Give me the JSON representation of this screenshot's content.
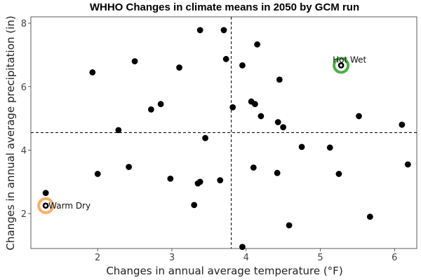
{
  "chart_data": {
    "type": "scatter",
    "title": "WHHO Changes in climate means in 2050 by GCM run",
    "xlabel": "Changes in annual average temperature (°F)",
    "ylabel": "Changes in annual average precipitation (in)",
    "xlim": [
      1.1,
      6.3
    ],
    "ylim": [
      0.9,
      8.2
    ],
    "xticks": [
      2,
      3,
      4,
      5,
      6
    ],
    "yticks": [
      2,
      4,
      6,
      8
    ],
    "grid": false,
    "point_color": "#000000",
    "points": [
      {
        "x": 1.3,
        "y": 2.65
      },
      {
        "x": 1.3,
        "y": 2.25
      },
      {
        "x": 1.93,
        "y": 6.45
      },
      {
        "x": 2.0,
        "y": 3.25
      },
      {
        "x": 2.28,
        "y": 4.63
      },
      {
        "x": 2.42,
        "y": 3.47
      },
      {
        "x": 2.5,
        "y": 6.8
      },
      {
        "x": 2.72,
        "y": 5.28
      },
      {
        "x": 2.85,
        "y": 5.45
      },
      {
        "x": 2.98,
        "y": 3.1
      },
      {
        "x": 3.1,
        "y": 6.6
      },
      {
        "x": 3.3,
        "y": 2.27
      },
      {
        "x": 3.35,
        "y": 2.95
      },
      {
        "x": 3.38,
        "y": 3.0
      },
      {
        "x": 3.38,
        "y": 7.78
      },
      {
        "x": 3.45,
        "y": 4.38
      },
      {
        "x": 3.65,
        "y": 3.05
      },
      {
        "x": 3.7,
        "y": 7.78
      },
      {
        "x": 3.73,
        "y": 6.87
      },
      {
        "x": 3.82,
        "y": 5.35
      },
      {
        "x": 3.95,
        "y": 6.67
      },
      {
        "x": 3.95,
        "y": 0.95
      },
      {
        "x": 4.07,
        "y": 5.53
      },
      {
        "x": 4.1,
        "y": 3.45
      },
      {
        "x": 4.12,
        "y": 5.45
      },
      {
        "x": 4.15,
        "y": 7.33
      },
      {
        "x": 4.2,
        "y": 5.07
      },
      {
        "x": 4.42,
        "y": 3.28
      },
      {
        "x": 4.43,
        "y": 4.88
      },
      {
        "x": 4.45,
        "y": 6.22
      },
      {
        "x": 4.5,
        "y": 4.72
      },
      {
        "x": 4.58,
        "y": 1.63
      },
      {
        "x": 4.75,
        "y": 4.1
      },
      {
        "x": 5.13,
        "y": 4.08
      },
      {
        "x": 5.25,
        "y": 3.25
      },
      {
        "x": 5.28,
        "y": 6.67
      },
      {
        "x": 5.52,
        "y": 5.07
      },
      {
        "x": 5.67,
        "y": 1.9
      },
      {
        "x": 6.1,
        "y": 4.8
      },
      {
        "x": 6.18,
        "y": 3.55
      }
    ],
    "reference_lines": {
      "vertical_x": 3.8,
      "horizontal_y": 4.55
    },
    "highlights": [
      {
        "label": "Hot Wet",
        "x": 5.28,
        "y": 6.67,
        "ring_color": "#4daf4a"
      },
      {
        "label": "Warm Dry",
        "x": 1.3,
        "y": 2.25,
        "ring_color": "#fdae61"
      }
    ]
  }
}
